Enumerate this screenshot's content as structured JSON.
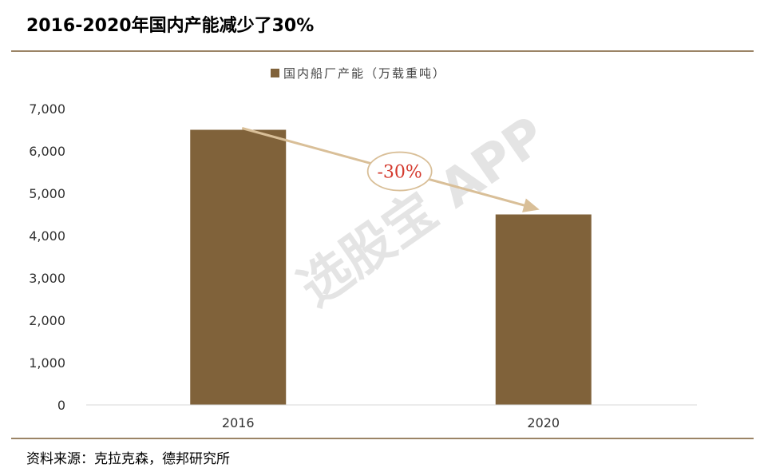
{
  "title": "2016-2020年国内产能减少了30%",
  "source": "资料来源：克拉克森，德邦研究所",
  "watermark": "选股宝 APP",
  "colors": {
    "bar": "#80623a",
    "rule": "#9b8466",
    "arrow": "#d9bf98",
    "annotation": "#d43a2e"
  },
  "chart_data": {
    "type": "bar",
    "categories": [
      "2016",
      "2020"
    ],
    "series": [
      {
        "name": "国内船厂产能（万载重吨）",
        "values": [
          6500,
          4500
        ]
      }
    ],
    "ylim": [
      0,
      7000
    ],
    "yticks": [
      "0",
      "1,000",
      "2,000",
      "3,000",
      "4,000",
      "5,000",
      "6,000",
      "7,000"
    ],
    "ytick_values": [
      0,
      1000,
      2000,
      3000,
      4000,
      5000,
      6000,
      7000
    ],
    "legend_position": "top",
    "grid": false,
    "annotation": {
      "text": "-30%",
      "from": "2016",
      "to": "2020"
    }
  }
}
